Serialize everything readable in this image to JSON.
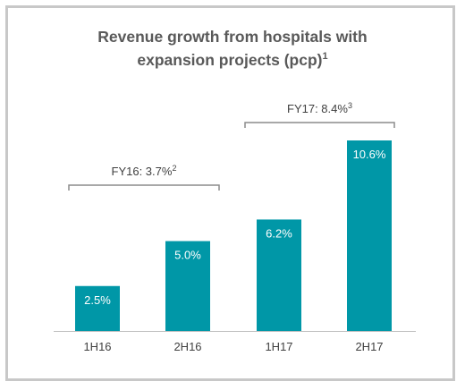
{
  "chart_data": {
    "type": "bar",
    "title_line1": "Revenue growth from hospitals with",
    "title_line2": "expansion projects (pcp)",
    "title_sup": "1",
    "categories": [
      "1H16",
      "2H16",
      "1H17",
      "2H17"
    ],
    "values": [
      2.5,
      5.0,
      6.2,
      10.6
    ],
    "value_labels": [
      "2.5%",
      "5.0%",
      "6.2%",
      "10.6%"
    ],
    "ylim": [
      0,
      10.6
    ],
    "brackets": [
      {
        "label": "FY16: 3.7%",
        "sup": "2",
        "from": 0,
        "to": 1
      },
      {
        "label": "FY17: 8.4%",
        "sup": "3",
        "from": 2,
        "to": 3
      }
    ],
    "bar_color": "#0097a7"
  }
}
